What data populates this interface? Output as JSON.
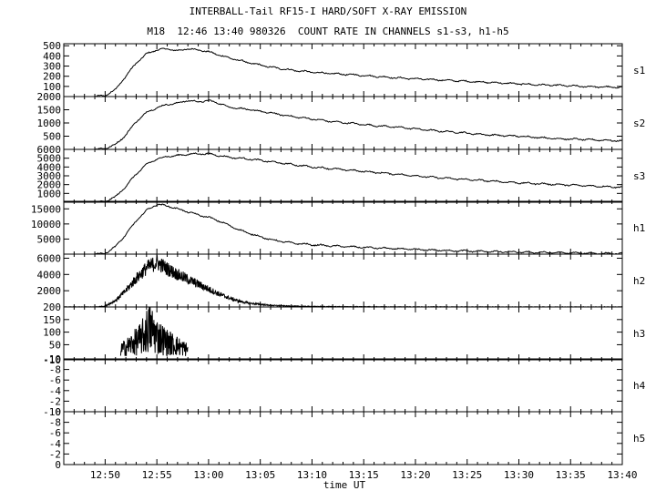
{
  "figure": {
    "title": "INTERBALL-Tail RF15-I HARD/SOFT X-RAY EMISSION",
    "subtitle": "M18  12:46 13:40 980326  COUNT RATE IN CHANNELS s1-s3, h1-h5",
    "xlabel": "time UT"
  },
  "chart_data": {
    "type": "line",
    "title": "INTERBALL-Tail RF15-I HARD/SOFT X-RAY EMISSION",
    "subtitle": "M18  12:46 13:40 980326  COUNT RATE IN CHANNELS s1-s3, h1-h5",
    "xlabel": "time UT",
    "x_unit": "minutes after 12:46 UT",
    "xlim": [
      0,
      54
    ],
    "x_ticks": [
      "12:50",
      "12:55",
      "13:00",
      "13:05",
      "13:10",
      "13:15",
      "13:20",
      "13:25",
      "13:30",
      "13:35",
      "13:40"
    ],
    "x_tick_values": [
      4,
      9,
      14,
      19,
      24,
      29,
      34,
      39,
      44,
      49,
      54
    ],
    "color": "#000000",
    "panels": [
      {
        "name": "s1",
        "ylim": [
          0,
          520
        ],
        "yticks": [
          100,
          200,
          300,
          400,
          500
        ],
        "x": [
          0,
          3,
          4,
          5,
          6,
          7,
          8,
          9,
          10,
          11,
          12,
          13,
          14,
          15,
          16,
          18,
          20,
          22,
          24,
          26,
          28,
          30,
          32,
          34,
          36,
          38,
          40,
          42,
          44,
          46,
          48,
          50,
          52,
          54
        ],
        "values": [
          0,
          0,
          10,
          70,
          200,
          330,
          420,
          460,
          470,
          450,
          470,
          460,
          440,
          410,
          380,
          330,
          290,
          260,
          240,
          225,
          215,
          200,
          185,
          175,
          165,
          155,
          145,
          135,
          125,
          115,
          110,
          100,
          95,
          90
        ]
      },
      {
        "name": "s2",
        "ylim": [
          0,
          2000
        ],
        "yticks": [
          500,
          1000,
          1500,
          2000
        ],
        "x": [
          0,
          3,
          4,
          5,
          6,
          7,
          8,
          9,
          10,
          11,
          12,
          13,
          14,
          15,
          16,
          18,
          20,
          22,
          24,
          26,
          28,
          30,
          32,
          34,
          36,
          38,
          40,
          42,
          44,
          46,
          48,
          50,
          52,
          54
        ],
        "values": [
          0,
          0,
          40,
          180,
          550,
          1050,
          1400,
          1580,
          1700,
          1750,
          1850,
          1800,
          1850,
          1750,
          1600,
          1500,
          1380,
          1250,
          1150,
          1050,
          980,
          900,
          850,
          780,
          700,
          650,
          580,
          530,
          500,
          450,
          400,
          380,
          350,
          320
        ]
      },
      {
        "name": "s3",
        "ylim": [
          0,
          6000
        ],
        "yticks": [
          1000,
          2000,
          3000,
          4000,
          5000,
          6000
        ],
        "x": [
          0,
          3,
          4,
          5,
          6,
          7,
          8,
          9,
          10,
          11,
          12,
          13,
          14,
          15,
          16,
          18,
          20,
          22,
          24,
          26,
          28,
          30,
          32,
          34,
          36,
          38,
          40,
          42,
          44,
          46,
          48,
          50,
          52,
          54
        ],
        "values": [
          0,
          0,
          100,
          600,
          1800,
          3200,
          4300,
          4900,
          5200,
          5300,
          5450,
          5500,
          5500,
          5300,
          5100,
          4900,
          4600,
          4300,
          4000,
          3800,
          3600,
          3400,
          3200,
          3000,
          2800,
          2650,
          2500,
          2350,
          2200,
          2100,
          2000,
          1900,
          1800,
          1700
        ]
      },
      {
        "name": "h1",
        "ylim": [
          0,
          17500
        ],
        "yticks": [
          5000,
          10000,
          15000
        ],
        "x": [
          0,
          3,
          4,
          5,
          6,
          7,
          8,
          9,
          10,
          11,
          12,
          13,
          14,
          15,
          16,
          17,
          18,
          20,
          22,
          24,
          26,
          28,
          30,
          32,
          34,
          36,
          38,
          40,
          42,
          44,
          46,
          48,
          50,
          52,
          54
        ],
        "values": [
          0,
          0,
          300,
          2500,
          6500,
          11000,
          14500,
          16500,
          16000,
          15000,
          14000,
          13000,
          12200,
          11000,
          9500,
          8000,
          6800,
          4800,
          3700,
          3100,
          2700,
          2400,
          2100,
          1800,
          1550,
          1300,
          1100,
          950,
          800,
          650,
          550,
          450,
          350,
          250,
          150
        ]
      },
      {
        "name": "h2",
        "ylim": [
          0,
          6500
        ],
        "yticks": [
          2000,
          4000,
          6000
        ],
        "x": [
          0,
          3,
          4,
          5,
          6,
          7,
          8,
          9,
          10,
          11,
          12,
          13,
          14,
          15,
          16,
          17,
          18,
          20,
          22,
          24,
          26,
          28,
          30,
          32,
          34,
          36,
          38,
          40,
          42,
          44,
          46,
          48,
          50,
          52,
          54
        ],
        "values": [
          0,
          0,
          100,
          800,
          2000,
          3500,
          4800,
          5500,
          4700,
          4000,
          3400,
          2800,
          2200,
          1600,
          1100,
          700,
          450,
          200,
          100,
          60,
          40,
          30,
          20,
          15,
          10,
          10,
          5,
          5,
          5,
          0,
          0,
          0,
          0,
          0,
          0
        ],
        "noisy": true
      },
      {
        "name": "h3",
        "ylim": [
          -10,
          200
        ],
        "yticks": [
          -10,
          50,
          100,
          150,
          200
        ],
        "x": [
          5.5,
          6.5,
          7.5,
          8.3,
          9,
          10,
          11,
          12
        ],
        "values": [
          30,
          50,
          75,
          120,
          85,
          60,
          45,
          30
        ],
        "noisy": true
      },
      {
        "name": "h4",
        "ylim": [
          0,
          -10
        ],
        "yticks": [
          0,
          -2,
          -4,
          -6,
          -8,
          -10
        ],
        "x": [],
        "values": []
      },
      {
        "name": "h5",
        "ylim": [
          0,
          -10
        ],
        "yticks": [
          0,
          -2,
          -4,
          -6,
          -8,
          -10
        ],
        "x": [],
        "values": []
      }
    ]
  }
}
